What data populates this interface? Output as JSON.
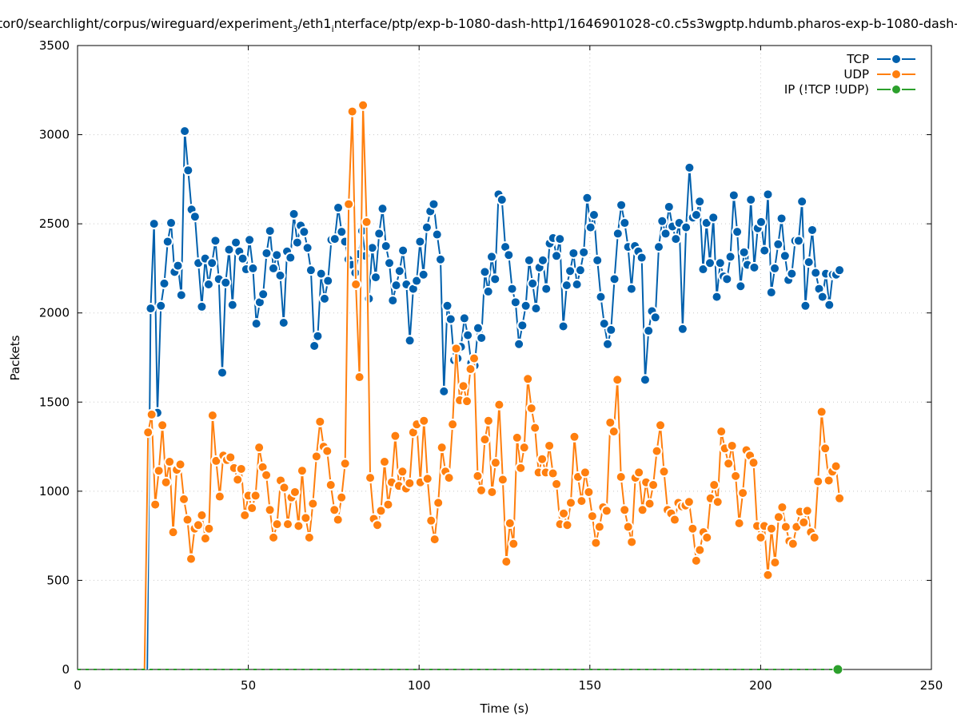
{
  "chart_data": {
    "type": "line",
    "title": {
      "part1": "tor0/searchlight/corpus/wireguard/experiment",
      "sub1": "3",
      "part2": "/eth1",
      "sub2": "i",
      "part3": "nterface/ptp/exp-b-1080-dash-http1/1646901028-c0.c5s3wgptp.hdumb.pharos-exp-b-1080-dash-"
    },
    "xlabel": "Time (s)",
    "ylabel": "Packets",
    "xlim": [
      0,
      250
    ],
    "ylim": [
      0,
      3500
    ],
    "xticks": [
      "0",
      "50",
      "100",
      "150",
      "200",
      "250"
    ],
    "yticks": [
      "0",
      "500",
      "1000",
      "1500",
      "2000",
      "2500",
      "3000",
      "3500"
    ],
    "grid": true,
    "legend_position": "top-right",
    "series": [
      {
        "name": "TCP",
        "color": "#0060ad",
        "x_start": 20.4,
        "x_end": 223.1,
        "values": [
          0,
          2025,
          2500,
          1440,
          2040,
          2165,
          2400,
          2505,
          2230,
          2265,
          2100,
          3020,
          2800,
          2580,
          2540,
          2280,
          2035,
          2305,
          2160,
          2280,
          2405,
          2190,
          1665,
          2170,
          2355,
          2045,
          2395,
          2345,
          2305,
          2245,
          2410,
          2250,
          1940,
          2060,
          2105,
          2335,
          2460,
          2250,
          2325,
          2210,
          1945,
          2345,
          2310,
          2555,
          2395,
          2490,
          2455,
          2365,
          2240,
          1815,
          1870,
          2220,
          2080,
          2180,
          2410,
          2415,
          2590,
          2455,
          2400,
          2300,
          2270,
          2225,
          2330,
          2460,
          2320,
          2080,
          2365,
          2200,
          2445,
          2585,
          2375,
          2280,
          2070,
          2155,
          2235,
          2350,
          2160,
          1845,
          2135,
          2180,
          2400,
          2215,
          2480,
          2570,
          2610,
          2440,
          2300,
          1560,
          2040,
          1965,
          1735,
          1745,
          1810,
          1970,
          1875,
          1720,
          1705,
          1915,
          1860,
          2230,
          2120,
          2315,
          2190,
          2665,
          2635,
          2370,
          2325,
          2135,
          2060,
          1825,
          1930,
          2040,
          2295,
          2165,
          2025,
          2255,
          2295,
          2135,
          2390,
          2420,
          2320,
          2415,
          1925,
          2155,
          2235,
          2335,
          2160,
          2240,
          2340,
          2645,
          2480,
          2550,
          2295,
          2090,
          1940,
          1825,
          1905,
          2190,
          2445,
          2605,
          2505,
          2370,
          2135,
          2375,
          2345,
          2310,
          1625,
          1900,
          2010,
          1975,
          2370,
          2515,
          2445,
          2595,
          2485,
          2415,
          2505,
          1910,
          2480,
          2815,
          2535,
          2550,
          2625,
          2245,
          2505,
          2280,
          2535,
          2090,
          2280,
          2205,
          2190,
          2315,
          2660,
          2455,
          2150,
          2340,
          2270,
          2635,
          2255,
          2475,
          2510,
          2350,
          2665,
          2115,
          2250,
          2385,
          2530,
          2320,
          2185,
          2220,
          2405,
          2405,
          2625,
          2040,
          2285,
          2465,
          2225,
          2135,
          2090,
          2220,
          2045,
          2215,
          2215,
          2240
        ]
      },
      {
        "name": "UDP",
        "color": "#ff7f0e",
        "x_start": 19.6,
        "x_end": 223.1,
        "values": [
          0,
          1330,
          1430,
          925,
          1115,
          1370,
          1050,
          1165,
          770,
          1120,
          1150,
          955,
          840,
          620,
          790,
          810,
          865,
          735,
          790,
          1425,
          1170,
          970,
          1200,
          1175,
          1190,
          1130,
          1065,
          1125,
          865,
          975,
          905,
          975,
          1245,
          1135,
          1090,
          895,
          740,
          815,
          1060,
          1020,
          815,
          965,
          995,
          805,
          1115,
          850,
          740,
          930,
          1195,
          1390,
          1250,
          1225,
          1035,
          895,
          840,
          965,
          1155,
          2610,
          3130,
          2160,
          1640,
          3165,
          2510,
          1075,
          845,
          810,
          890,
          1165,
          925,
          1050,
          1310,
          1030,
          1110,
          1015,
          1045,
          1330,
          1375,
          1050,
          1395,
          1070,
          835,
          730,
          935,
          1245,
          1110,
          1075,
          1375,
          1800,
          1510,
          1590,
          1505,
          1685,
          1745,
          1085,
          1005,
          1290,
          1395,
          995,
          1160,
          1485,
          1065,
          605,
          820,
          705,
          1300,
          1130,
          1245,
          1630,
          1465,
          1355,
          1105,
          1180,
          1105,
          1255,
          1100,
          1040,
          815,
          875,
          810,
          935,
          1305,
          1080,
          945,
          1105,
          995,
          860,
          710,
          800,
          910,
          890,
          1385,
          1335,
          1625,
          1080,
          895,
          800,
          715,
          1075,
          1105,
          895,
          1050,
          930,
          1035,
          1225,
          1370,
          1110,
          895,
          875,
          840,
          935,
          915,
          920,
          940,
          790,
          610,
          670,
          770,
          740,
          960,
          1035,
          940,
          1335,
          1240,
          1155,
          1255,
          1085,
          820,
          990,
          1230,
          1200,
          1160,
          805,
          740,
          805,
          530,
          790,
          600,
          855,
          910,
          800,
          720,
          705,
          800,
          885,
          825,
          890,
          770,
          740,
          1055,
          1445,
          1240,
          1060,
          1110,
          1140,
          960
        ]
      },
      {
        "name": "IP (!TCP  !UDP)",
        "color": "#2ca02c",
        "x_start": 0,
        "x_end": 222.6,
        "values": [
          0,
          0
        ]
      }
    ]
  }
}
